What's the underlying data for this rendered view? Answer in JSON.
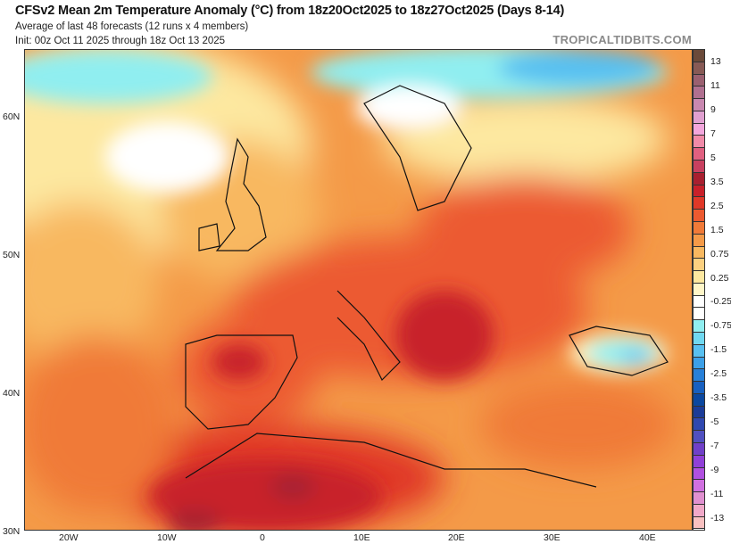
{
  "header": {
    "title": "CFSv2 Mean 2m Temperature Anomaly (°C) from 18z20Oct2025 to 18z27Oct2025 (Days 8-14)",
    "subtitle": "Average of last 48 forecasts (12 runs x 4 members)",
    "init": "Init: 00z Oct 11 2025 through 18z Oct 13 2025",
    "brand": "TROPICALTIDBITS.COM"
  },
  "axes": {
    "lon_labels": [
      "20W",
      "10W",
      "0",
      "10E",
      "20E",
      "30E",
      "40E"
    ],
    "lat_labels": [
      "60N",
      "50N",
      "40N",
      "30N"
    ]
  },
  "colorbar": {
    "unit": "°C",
    "labels": [
      "13",
      "11",
      "9",
      "7",
      "5",
      "3.5",
      "2.5",
      "1.5",
      "0.75",
      "0.25",
      "-0.25",
      "-0.75",
      "-1.5",
      "-2.5",
      "-3.5",
      "-5",
      "-7",
      "-9",
      "-11",
      "-13"
    ],
    "colors": [
      "#6b4a3a",
      "#875a55",
      "#9a6070",
      "#b07090",
      "#c888b0",
      "#e0a0d0",
      "#f2a6dc",
      "#f08aa8",
      "#e06080",
      "#c84060",
      "#a82030",
      "#c8202a",
      "#e03828",
      "#ec5a30",
      "#f07a38",
      "#f49a48",
      "#f8b860",
      "#fcd080",
      "#fde8a0",
      "#fff6c8",
      "#ffffff",
      "#ffffff",
      "#90eef0",
      "#70d8f0",
      "#58c0f0",
      "#3ca0e8",
      "#2880d8",
      "#1860c0",
      "#0c48a0",
      "#1c3c98",
      "#3048b0",
      "#5050c0",
      "#7040c8",
      "#9040d8",
      "#b050e0",
      "#d070e0",
      "#e090d0",
      "#f0a8c8",
      "#f8c0c0"
    ]
  }
}
